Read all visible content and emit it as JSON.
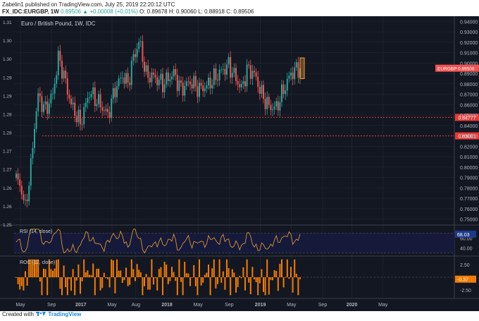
{
  "header": {
    "author_line": "Zabelin1 published on TradingView.com, July 25, 2019 22:20:12 UTC",
    "symbol": "FX_IDC:EURGBP, 1W",
    "change": "0.89506 ▲ +0.00008 (+0.01%)",
    "ohlc": "O: 0.89678  H: 0.90060  L: 0.88918  C: 0.89506"
  },
  "footer": {
    "created_with": "Created with",
    "brand": "TradingView"
  },
  "colors": {
    "background": "#131722",
    "grid": "#252a36",
    "text": "#b2b5be",
    "up": "#26a69a",
    "down": "#ef5350",
    "support": "#e53935",
    "rsi_line": "#f0a030",
    "rsi_band": "#161a3a",
    "roc": "#f57c00",
    "highlight": "#f0a030"
  },
  "chart_data": [
    {
      "type": "candlestick",
      "title": "Euro / British Pound, 1W, IDC",
      "ylim": [
        0.745,
        0.945
      ],
      "y_ticks_right": [
        "0.94000",
        "0.93000",
        "0.92000",
        "0.91000",
        "0.90000",
        "0.89000",
        "0.88000",
        "0.87000",
        "0.86000",
        "0.85000",
        "0.84000",
        "0.83000",
        "0.82000",
        "0.81000",
        "0.80000",
        "0.79000",
        "0.78000",
        "0.77000",
        "0.76000",
        "0.75000"
      ],
      "y_ticks_left": [
        "1.31",
        "1.30",
        "1.30",
        "1.29",
        "1.29",
        "1.28",
        "1.28",
        "1.27",
        "1.27",
        "1.26",
        "1.26",
        "1.25"
      ],
      "x_labels": [
        "May",
        "Sep",
        "2017",
        "May",
        "Aug",
        "2018",
        "May",
        "Sep",
        "2019",
        "May",
        "Sep",
        "2020",
        "May"
      ],
      "last_label": "EURGBP",
      "last_value": "0.89506",
      "last_price": 0.89506,
      "support_levels": [
        {
          "label": "0.84777",
          "value": 0.84777
        },
        {
          "label": "0.83001",
          "value": 0.83001
        }
      ],
      "anchors": [
        [
          0,
          0.79
        ],
        [
          3,
          0.778
        ],
        [
          5,
          0.76
        ],
        [
          8,
          0.8
        ],
        [
          10,
          0.84
        ],
        [
          12,
          0.868
        ],
        [
          16,
          0.855
        ],
        [
          20,
          0.87
        ],
        [
          23,
          0.905
        ],
        [
          25,
          0.895
        ],
        [
          30,
          0.86
        ],
        [
          35,
          0.842
        ],
        [
          40,
          0.872
        ],
        [
          45,
          0.862
        ],
        [
          50,
          0.85
        ],
        [
          54,
          0.875
        ],
        [
          58,
          0.888
        ],
        [
          61,
          0.88
        ],
        [
          64,
          0.905
        ],
        [
          67,
          0.92
        ],
        [
          68,
          0.915
        ],
        [
          71,
          0.888
        ],
        [
          75,
          0.887
        ],
        [
          80,
          0.88
        ],
        [
          86,
          0.89
        ],
        [
          90,
          0.875
        ],
        [
          95,
          0.882
        ],
        [
          100,
          0.875
        ],
        [
          104,
          0.878
        ],
        [
          108,
          0.885
        ],
        [
          112,
          0.892
        ],
        [
          116,
          0.898
        ],
        [
          120,
          0.885
        ],
        [
          123,
          0.875
        ],
        [
          126,
          0.893
        ],
        [
          129,
          0.892
        ],
        [
          131,
          0.885
        ],
        [
          134,
          0.87
        ],
        [
          138,
          0.858
        ],
        [
          142,
          0.857
        ],
        [
          146,
          0.874
        ],
        [
          150,
          0.89
        ],
        [
          154,
          0.895
        ]
      ]
    },
    {
      "type": "line",
      "title": "RSI (14, close)",
      "ylim": [
        25,
        85
      ],
      "y_ticks": [
        "60.00",
        "40.00"
      ],
      "last_value": "68.03",
      "last_numeric": 68.03,
      "band": [
        30,
        70
      ]
    },
    {
      "type": "bar",
      "title": "ROC (12, close)",
      "ylim": [
        -4,
        4
      ],
      "y_ticks": [
        "2.50",
        "-2.50"
      ],
      "last_value": "-0.37",
      "last_numeric": -0.37
    }
  ]
}
